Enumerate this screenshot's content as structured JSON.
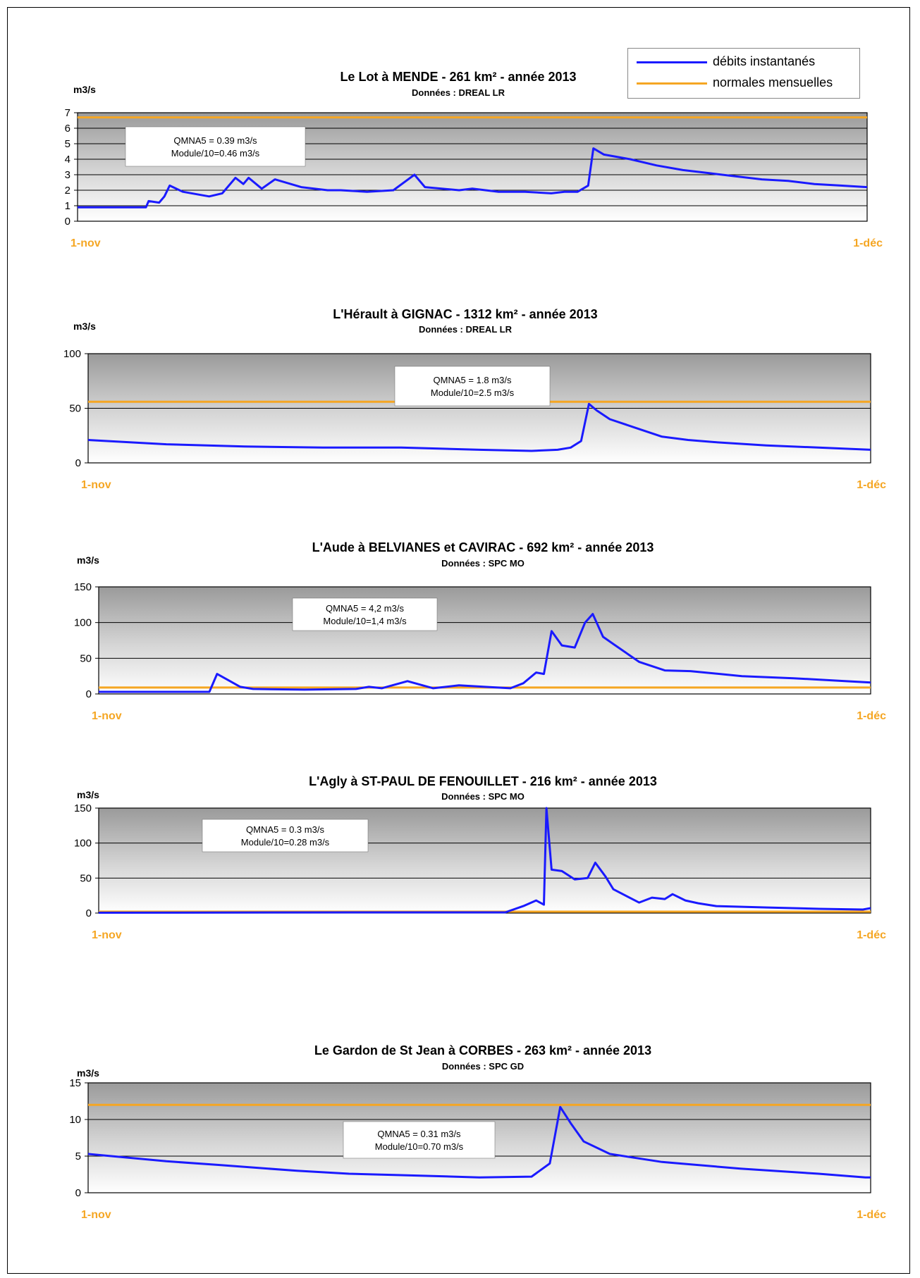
{
  "legend": {
    "instant_label": "débits instantanés",
    "normals_label": "normales mensuelles",
    "instant_color": "#1a1aff",
    "normals_color": "#f5a623"
  },
  "chart_data": [
    {
      "type": "line",
      "title": "Le Lot à MENDE - 261 km² - année 2013",
      "subtitle": "Données : DREAL LR",
      "ylabel": "m3/s",
      "ylim": [
        0,
        7
      ],
      "yticks": [
        0,
        1,
        2,
        3,
        4,
        5,
        6,
        7
      ],
      "xlim": [
        0,
        30
      ],
      "x_start_label": "1-nov",
      "x_end_label": "1-déc",
      "annotation": [
        "QMNA5 = 0.39 m3/s",
        "Module/10=0.46 m3/s"
      ],
      "normal": 6.7,
      "series": [
        {
          "name": "débits instantanés",
          "x": [
            0,
            2.6,
            2.7,
            3.1,
            3.3,
            3.5,
            4,
            5,
            5.5,
            6,
            6.3,
            6.5,
            7,
            7.5,
            8.5,
            9.5,
            10,
            11,
            12,
            12.8,
            13.2,
            14.5,
            15,
            16,
            17,
            18,
            18.5,
            19,
            19.4,
            19.6,
            20,
            21,
            22,
            23,
            24,
            25,
            26,
            27,
            28,
            29,
            30
          ],
          "y": [
            0.9,
            0.9,
            1.3,
            1.2,
            1.6,
            2.3,
            1.9,
            1.6,
            1.8,
            2.8,
            2.4,
            2.8,
            2.1,
            2.7,
            2.2,
            2.0,
            2.0,
            1.9,
            2.0,
            3.0,
            2.2,
            2.0,
            2.1,
            1.9,
            1.9,
            1.8,
            1.9,
            1.9,
            2.3,
            4.7,
            4.3,
            4.0,
            3.6,
            3.3,
            3.1,
            2.9,
            2.7,
            2.6,
            2.4,
            2.3,
            2.2
          ]
        }
      ]
    },
    {
      "type": "line",
      "title": "L'Hérault à GIGNAC - 1312 km² - année 2013",
      "subtitle": "Données : DREAL LR",
      "ylabel": "m3/s",
      "ylim": [
        0,
        100
      ],
      "yticks": [
        0,
        50,
        100
      ],
      "xlim": [
        0,
        30
      ],
      "x_start_label": "1-nov",
      "x_end_label": "1-déc",
      "annotation": [
        "QMNA5 = 1.8 m3/s",
        "Module/10=2.5  m3/s"
      ],
      "normal": 56,
      "series": [
        {
          "name": "débits instantanés",
          "x": [
            0,
            3,
            6,
            9,
            12,
            15,
            17,
            18,
            18.5,
            18.9,
            19.2,
            19.5,
            20,
            21,
            22,
            23,
            24,
            26,
            28,
            30
          ],
          "y": [
            21,
            17,
            15,
            14,
            14,
            12,
            11,
            12,
            14,
            20,
            54,
            48,
            40,
            32,
            24,
            21,
            19,
            16,
            14,
            12
          ]
        }
      ]
    },
    {
      "type": "line",
      "title": "L'Aude à BELVIANES et CAVIRAC - 692 km² - année 2013",
      "subtitle": "Données : SPC MO",
      "ylabel": "m3/s",
      "ylim": [
        0,
        150
      ],
      "yticks": [
        0,
        50,
        100,
        150
      ],
      "xlim": [
        0,
        30
      ],
      "x_start_label": "1-nov",
      "x_end_label": "1-déc",
      "annotation": [
        "QMNA5 = 4,2 m3/s",
        "Module/10=1,4 m3/s"
      ],
      "normal": 9,
      "series": [
        {
          "name": "débits instantanés",
          "x": [
            0,
            2,
            4.3,
            4.6,
            5,
            5.5,
            6,
            8,
            10,
            10.5,
            11,
            12,
            13,
            14,
            15,
            16,
            16.5,
            17,
            17.3,
            17.6,
            18,
            18.5,
            18.9,
            19.2,
            19.6,
            20,
            21,
            22,
            23,
            25,
            27,
            29,
            30
          ],
          "y": [
            3,
            3,
            3,
            28,
            20,
            10,
            7,
            6,
            7,
            10,
            8,
            18,
            8,
            12,
            10,
            8,
            15,
            30,
            28,
            88,
            68,
            65,
            100,
            112,
            80,
            70,
            45,
            33,
            32,
            25,
            22,
            18,
            16
          ]
        }
      ]
    },
    {
      "type": "line",
      "title": "L'Agly à ST-PAUL DE FENOUILLET - 216 km² - année 2013",
      "subtitle": "Données : SPC MO",
      "ylabel": "m3/s",
      "ylim": [
        0,
        150
      ],
      "yticks": [
        0,
        50,
        100,
        150
      ],
      "xlim": [
        0,
        30
      ],
      "x_start_label": "1-nov",
      "x_end_label": "1-déc",
      "annotation": [
        "QMNA5 = 0.3 m3/s",
        "Module/10=0.28 m3/s"
      ],
      "normal": 2,
      "series": [
        {
          "name": "débits instantanés",
          "x": [
            0,
            10,
            15.8,
            16.5,
            17,
            17.3,
            17.4,
            17.6,
            18,
            18.5,
            19,
            19.3,
            19.7,
            20,
            21,
            21.5,
            22,
            22.3,
            22.8,
            23.3,
            24,
            26,
            28,
            29.7,
            30
          ],
          "y": [
            0.5,
            1,
            1,
            10,
            18,
            12,
            150,
            62,
            60,
            48,
            50,
            72,
            52,
            34,
            15,
            22,
            20,
            27,
            18,
            14,
            10,
            8,
            6,
            5,
            7
          ]
        }
      ]
    },
    {
      "type": "line",
      "title": "Le Gardon de St Jean à CORBES - 263 km² - année 2013",
      "subtitle": "Données : SPC GD",
      "ylabel": "m3/s",
      "ylim": [
        0,
        15
      ],
      "yticks": [
        0,
        5,
        10,
        15
      ],
      "xlim": [
        0,
        30
      ],
      "x_start_label": "1-nov",
      "x_end_label": "1-déc",
      "annotation": [
        "QMNA5 = 0.31 m3/s",
        "Module/10=0.70 m3/s"
      ],
      "normal": 12,
      "series": [
        {
          "name": "débits instantanés",
          "x": [
            0,
            3,
            5,
            8,
            10,
            12,
            15,
            17,
            17.7,
            18.1,
            18.5,
            19,
            20,
            22,
            25,
            28,
            29.8,
            30
          ],
          "y": [
            5.3,
            4.3,
            3.8,
            3.0,
            2.6,
            2.4,
            2.1,
            2.2,
            4.0,
            11.7,
            9.5,
            7.0,
            5.3,
            4.2,
            3.3,
            2.6,
            2.1,
            2.1
          ]
        }
      ]
    }
  ]
}
